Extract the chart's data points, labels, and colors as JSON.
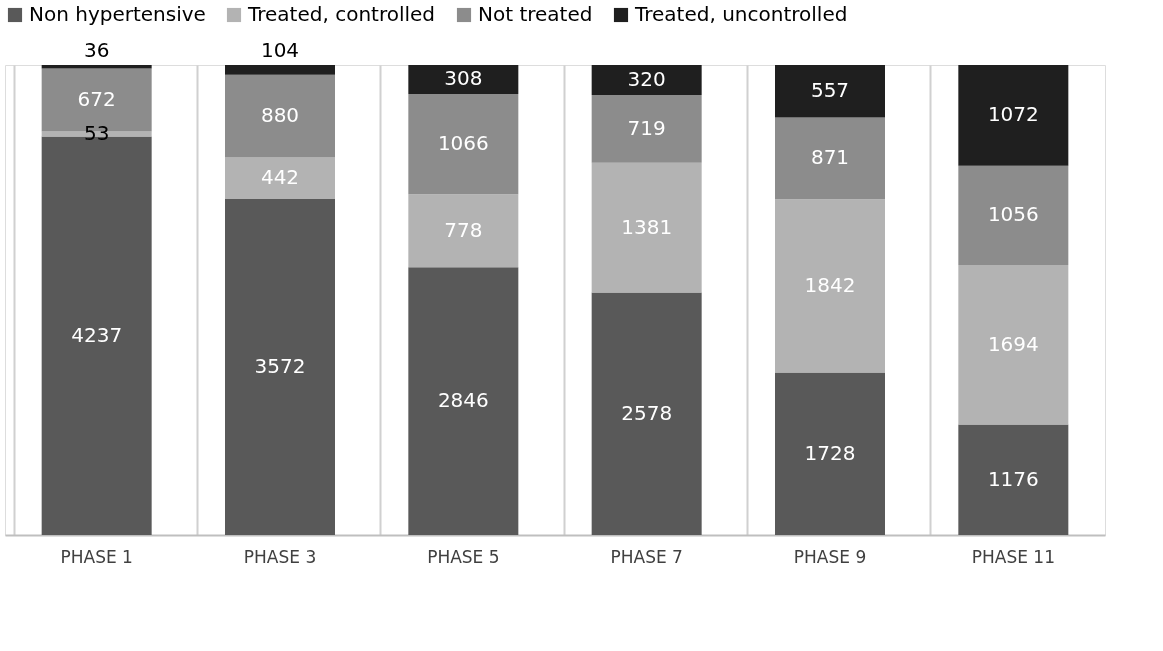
{
  "chart_data": {
    "type": "bar",
    "stacked": true,
    "data_labels": true,
    "grid": "x",
    "legend": "top",
    "categories": [
      "PHASE 1",
      "PHASE 3",
      "PHASE 5",
      "PHASE 7",
      "PHASE 9",
      "PHASE 11"
    ],
    "series": [
      {
        "name": "Non hypertensive",
        "color": "#595959",
        "values": [
          4237,
          3572,
          2846,
          2578,
          1728,
          1176
        ]
      },
      {
        "name": "Treated, controlled",
        "color": "#b3b3b3",
        "values": [
          53,
          442,
          778,
          1381,
          1842,
          1694
        ]
      },
      {
        "name": "Not treated",
        "color": "#8c8c8c",
        "values": [
          672,
          880,
          1066,
          719,
          871,
          1056
        ]
      },
      {
        "name": "Treated, uncontrolled",
        "color": "#1f1f1f",
        "values": [
          36,
          104,
          308,
          320,
          557,
          1072
        ]
      }
    ]
  }
}
